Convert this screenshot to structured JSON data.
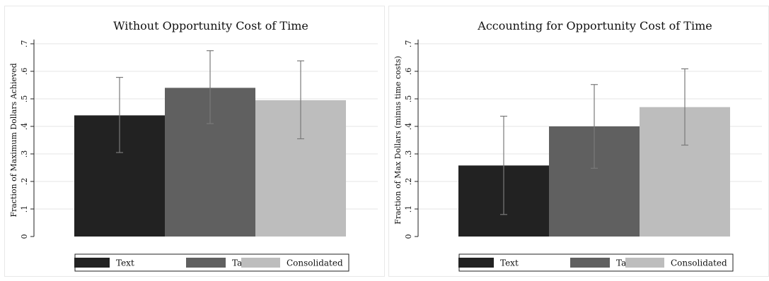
{
  "colors": {
    "text_bar": "#222222",
    "tabular_bar": "#606060",
    "consolidated_bar": "#bdbdbd",
    "error_bar": "#7a7a7a",
    "grid": "#e6e6e6",
    "axis": "#222222"
  },
  "chart_data": [
    {
      "type": "bar",
      "title": "Without Opportunity Cost of Time",
      "xlabel": "",
      "ylabel": "Fraction of Maximum Dollars Achieved",
      "ylim": [
        0,
        0.7
      ],
      "yticks": [
        "0",
        ".1",
        ".2",
        ".3",
        ".4",
        ".5",
        ".6",
        ".7"
      ],
      "grid": true,
      "legend_position": "bottom",
      "categories": [
        "Text",
        "Tabular",
        "Consolidated"
      ],
      "values": [
        0.44,
        0.54,
        0.495
      ],
      "error_low": [
        0.305,
        0.41,
        0.355
      ],
      "error_high": [
        0.578,
        0.675,
        0.638
      ],
      "legend": [
        "Text",
        "Tabular",
        "Consolidated"
      ]
    },
    {
      "type": "bar",
      "title": "Accounting for Opportunity Cost of Time",
      "xlabel": "",
      "ylabel": "Fraction of Max Dollars (minus time costs)",
      "ylim": [
        0,
        0.7
      ],
      "yticks": [
        "0",
        ".1",
        ".2",
        ".3",
        ".4",
        ".5",
        ".6",
        ".7"
      ],
      "grid": true,
      "legend_position": "bottom",
      "categories": [
        "Text",
        "Tabular",
        "Consolidated"
      ],
      "values": [
        0.258,
        0.4,
        0.47
      ],
      "error_low": [
        0.08,
        0.248,
        0.332
      ],
      "error_high": [
        0.437,
        0.552,
        0.609
      ],
      "legend": [
        "Text",
        "Tabular",
        "Consolidated"
      ]
    }
  ]
}
